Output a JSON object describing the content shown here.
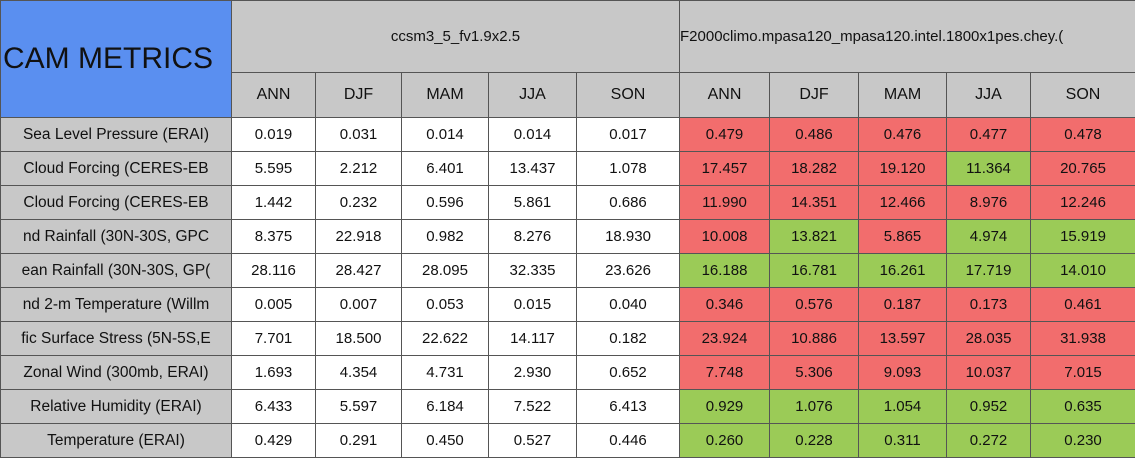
{
  "header": {
    "title": "CAM METRICS",
    "groups": [
      {
        "name": "ccsm3_5_fv1.9x2.5",
        "seasons": [
          "ANN",
          "DJF",
          "MAM",
          "JJA",
          "SON"
        ]
      },
      {
        "name": "F2000climo.mpasa120_mpasa120.intel.1800x1pes.chey.(",
        "seasons": [
          "ANN",
          "DJF",
          "MAM",
          "JJA",
          "SON"
        ]
      }
    ]
  },
  "palette": {
    "red": "#f26d6d",
    "green": "#9bcb57"
  },
  "table": {
    "rows": [
      {
        "label": "Sea Level Pressure (ERAI)",
        "values": [
          "0.019",
          "0.031",
          "0.014",
          "0.014",
          "0.017",
          "0.479",
          "0.486",
          "0.476",
          "0.477",
          "0.478"
        ],
        "colors": [
          "red",
          "red",
          "red",
          "red",
          "red"
        ]
      },
      {
        "label": "Cloud Forcing (CERES-EB",
        "values": [
          "5.595",
          "2.212",
          "6.401",
          "13.437",
          "1.078",
          "17.457",
          "18.282",
          "19.120",
          "11.364",
          "20.765"
        ],
        "colors": [
          "red",
          "red",
          "red",
          "green",
          "red"
        ]
      },
      {
        "label": "Cloud Forcing (CERES-EB",
        "values": [
          "1.442",
          "0.232",
          "0.596",
          "5.861",
          "0.686",
          "11.990",
          "14.351",
          "12.466",
          "8.976",
          "12.246"
        ],
        "colors": [
          "red",
          "red",
          "red",
          "red",
          "red"
        ]
      },
      {
        "label": "nd Rainfall (30N-30S, GPC",
        "values": [
          "8.375",
          "22.918",
          "0.982",
          "8.276",
          "18.930",
          "10.008",
          "13.821",
          "5.865",
          "4.974",
          "15.919"
        ],
        "colors": [
          "red",
          "green",
          "red",
          "green",
          "green"
        ]
      },
      {
        "label": "ean Rainfall (30N-30S, GP(",
        "values": [
          "28.116",
          "28.427",
          "28.095",
          "32.335",
          "23.626",
          "16.188",
          "16.781",
          "16.261",
          "17.719",
          "14.010"
        ],
        "colors": [
          "green",
          "green",
          "green",
          "green",
          "green"
        ]
      },
      {
        "label": "nd 2-m Temperature (Willm",
        "values": [
          "0.005",
          "0.007",
          "0.053",
          "0.015",
          "0.040",
          "0.346",
          "0.576",
          "0.187",
          "0.173",
          "0.461"
        ],
        "colors": [
          "red",
          "red",
          "red",
          "red",
          "red"
        ]
      },
      {
        "label": "fic Surface Stress (5N-5S,E",
        "values": [
          "7.701",
          "18.500",
          "22.622",
          "14.117",
          "0.182",
          "23.924",
          "10.886",
          "13.597",
          "28.035",
          "31.938"
        ],
        "colors": [
          "red",
          "red",
          "red",
          "red",
          "red"
        ]
      },
      {
        "label": "Zonal Wind (300mb, ERAI)",
        "values": [
          "1.693",
          "4.354",
          "4.731",
          "2.930",
          "0.652",
          "7.748",
          "5.306",
          "9.093",
          "10.037",
          "7.015"
        ],
        "colors": [
          "red",
          "red",
          "red",
          "red",
          "red"
        ]
      },
      {
        "label": "Relative Humidity (ERAI)",
        "values": [
          "6.433",
          "5.597",
          "6.184",
          "7.522",
          "6.413",
          "0.929",
          "1.076",
          "1.054",
          "0.952",
          "0.635"
        ],
        "colors": [
          "green",
          "green",
          "green",
          "green",
          "green"
        ]
      },
      {
        "label": "Temperature (ERAI)",
        "values": [
          "0.429",
          "0.291",
          "0.450",
          "0.527",
          "0.446",
          "0.260",
          "0.228",
          "0.311",
          "0.272",
          "0.230"
        ],
        "colors": [
          "green",
          "green",
          "green",
          "green",
          "green"
        ]
      }
    ]
  }
}
